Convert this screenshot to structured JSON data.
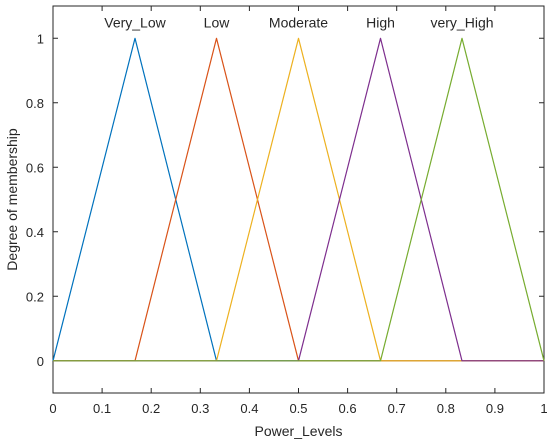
{
  "chart_data": {
    "type": "line",
    "title": "",
    "xlabel": "Power_Levels",
    "ylabel": "Degree of membership",
    "xlim": [
      0,
      1
    ],
    "ylim": [
      -0.1,
      1.1
    ],
    "xticks": [
      0,
      0.1,
      0.2,
      0.3,
      0.4,
      0.5,
      0.6,
      0.7,
      0.8,
      0.9,
      1
    ],
    "xtick_labels": [
      "0",
      "0.1",
      "0.2",
      "0.3",
      "0.4",
      "0.5",
      "0.6",
      "0.7",
      "0.8",
      "0.9",
      "1"
    ],
    "yticks": [
      0,
      0.2,
      0.4,
      0.6,
      0.8,
      1
    ],
    "ytick_labels": [
      "0",
      "0.2",
      "0.4",
      "0.6",
      "0.8",
      "1"
    ],
    "grid": false,
    "series": [
      {
        "name": "Very_Low",
        "color": "#0072BD",
        "x": [
          0,
          0.167,
          0.333,
          1
        ],
        "y": [
          0,
          1,
          0,
          0
        ]
      },
      {
        "name": "Low",
        "color": "#D95319",
        "x": [
          0,
          0.167,
          0.333,
          0.5,
          1
        ],
        "y": [
          0,
          0,
          1,
          0,
          0
        ]
      },
      {
        "name": "Moderate",
        "color": "#EDB120",
        "x": [
          0,
          0.333,
          0.5,
          0.667,
          1
        ],
        "y": [
          0,
          0,
          1,
          0,
          0
        ]
      },
      {
        "name": "High",
        "color": "#7E2F8E",
        "x": [
          0,
          0.5,
          0.667,
          0.833,
          1
        ],
        "y": [
          0,
          0,
          1,
          0,
          0
        ]
      },
      {
        "name": "very_High",
        "color": "#77AC30",
        "x": [
          0,
          0.667,
          0.833,
          1
        ],
        "y": [
          0,
          0,
          1,
          0
        ]
      }
    ]
  }
}
